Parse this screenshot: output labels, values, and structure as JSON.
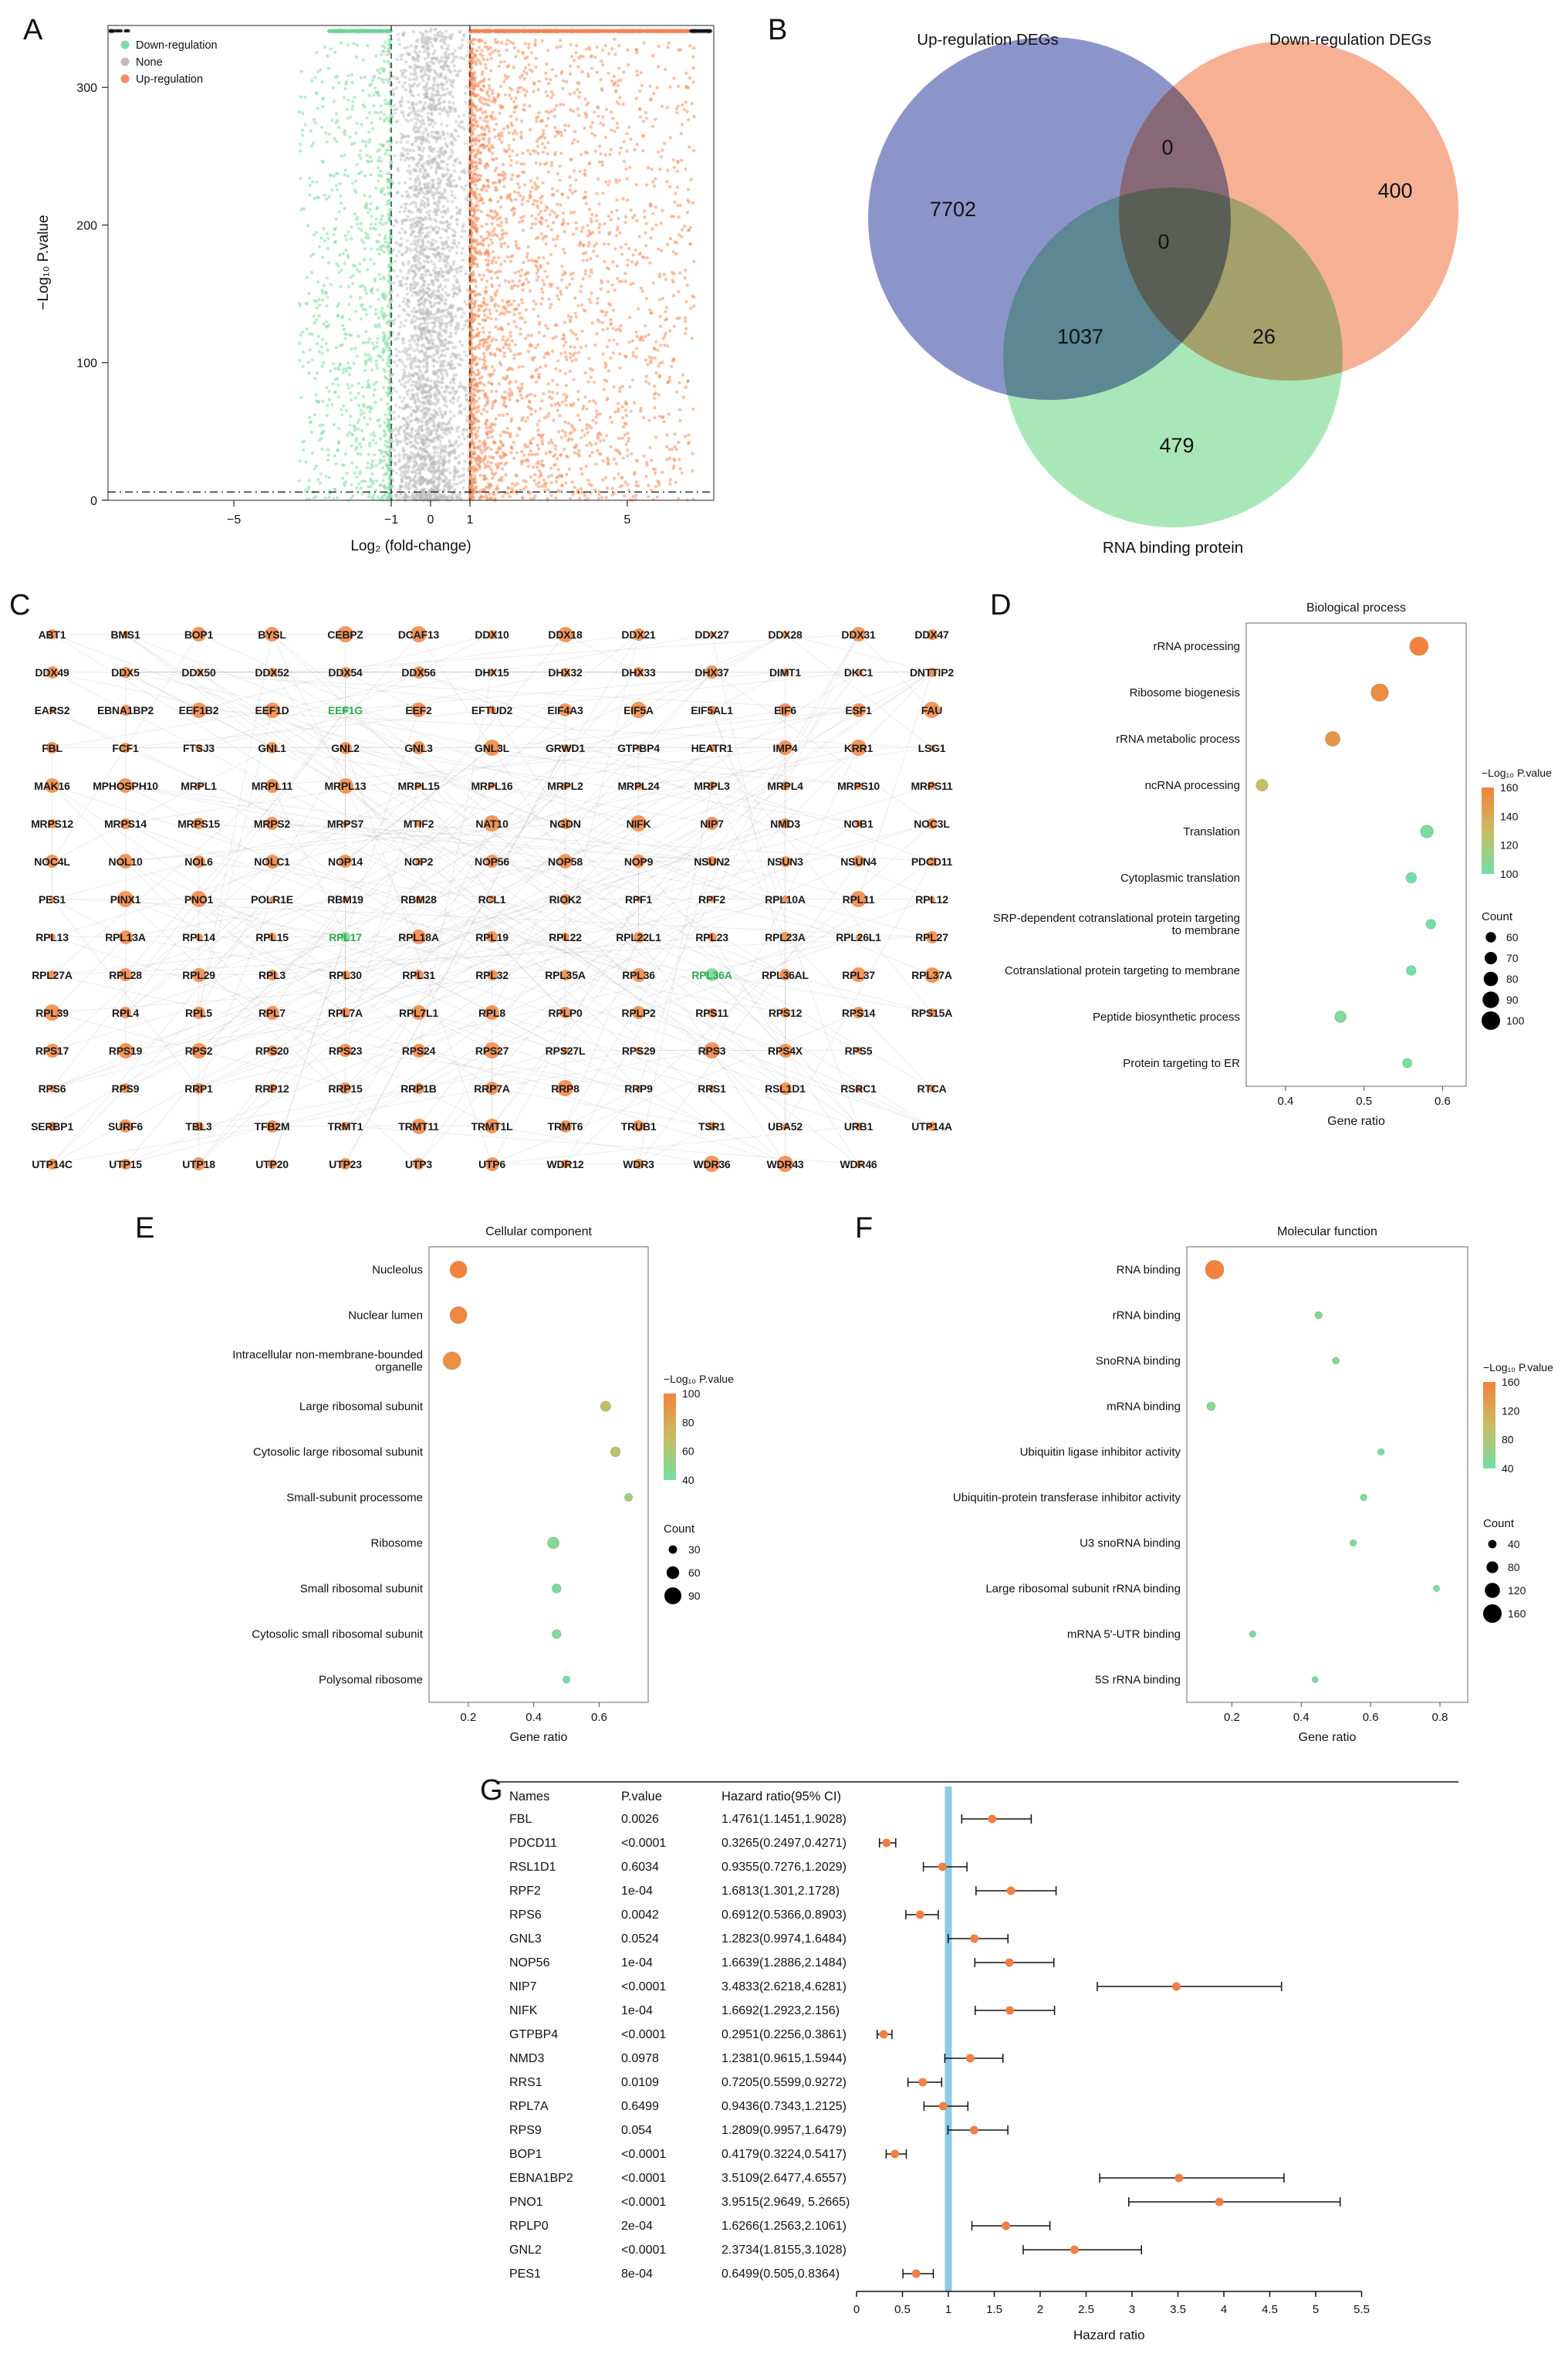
{
  "panels": {
    "a": "A",
    "b": "B",
    "c": "C",
    "d": "D",
    "e": "E",
    "f": "F",
    "g": "G"
  },
  "chart_data": [
    {
      "id": "A",
      "type": "scatter",
      "kind": "volcano",
      "xlabel": "Log₂ (fold-change)",
      "ylabel": "−Log₁₀ P.value",
      "xlim": [
        -8.2,
        7.2
      ],
      "ylim": [
        0,
        345
      ],
      "x_tick_labels": [
        "−5",
        "−1",
        "0",
        "1",
        "5"
      ],
      "x_tick_values": [
        -5,
        -1,
        0,
        1,
        5
      ],
      "y_tick_labels": [
        "0",
        "100",
        "200",
        "300"
      ],
      "y_tick_values": [
        0,
        100,
        200,
        300
      ],
      "threshold_x": [
        -1,
        1
      ],
      "threshold_y": 6,
      "legend": [
        {
          "label": "Down-regulation",
          "color": "#7EDCA0"
        },
        {
          "label": "None",
          "color": "#BDBDBD"
        },
        {
          "label": "Up-regulation",
          "color": "#F28C5A"
        }
      ]
    },
    {
      "id": "B",
      "type": "venn",
      "sets": [
        {
          "name": "Up-regulation DEGs",
          "unique_count": "7702",
          "color": "#7883C1"
        },
        {
          "name": "Down-regulation DEGs",
          "unique_count": "400",
          "color": "#F5A383"
        },
        {
          "name": "RNA binding protein",
          "unique_count": "479",
          "color": "#9BE3AC"
        }
      ],
      "overlaps": [
        {
          "sets": [
            "Up-regulation DEGs",
            "Down-regulation DEGs"
          ],
          "count": "0"
        },
        {
          "sets": [
            "Up-regulation DEGs",
            "Down-regulation DEGs",
            "RNA binding protein"
          ],
          "count": "0"
        },
        {
          "sets": [
            "Up-regulation DEGs",
            "RNA binding protein"
          ],
          "count": "1037"
        },
        {
          "sets": [
            "Down-regulation DEGs",
            "RNA binding protein"
          ],
          "count": "26"
        }
      ]
    },
    {
      "id": "C",
      "type": "network",
      "node_color": "#F28B4B",
      "green_node_color": "#7FD89A",
      "green_label_color": "#2FA84F",
      "green_genes": [
        "EEF1G",
        "RPL17",
        "RPL36A"
      ],
      "gene_rows": [
        [
          "ABT1",
          "BMS1",
          "BOP1",
          "BYSL",
          "CEBPZ",
          "DCAF13",
          "DDX10",
          "DDX18",
          "DDX21",
          "DDX27",
          "DDX28",
          "DDX31",
          "DDX47"
        ],
        [
          "DDX49",
          "DDX5",
          "DDX50",
          "DDX52",
          "DDX54",
          "DDX56",
          "DHX15",
          "DHX32",
          "DHX33",
          "DHX37",
          "DIMT1",
          "DKC1",
          "DNTTIP2"
        ],
        [
          "EARS2",
          "EBNA1BP2",
          "EEF1B2",
          "EEF1D",
          "EEF1G",
          "EEF2",
          "EFTUD2",
          "EIF4A3",
          "EIF5A",
          "EIF5AL1",
          "EIF6",
          "ESF1",
          "FAU"
        ],
        [
          "FBL",
          "FCF1",
          "FTSJ3",
          "GNL1",
          "GNL2",
          "GNL3",
          "GNL3L",
          "GRWD1",
          "GTPBP4",
          "HEATR1",
          "IMP4",
          "KRR1",
          "LSG1"
        ],
        [
          "MAK16",
          "MPHOSPH10",
          "MRPL1",
          "MRPL11",
          "MRPL13",
          "MRPL15",
          "MRPL16",
          "MRPL2",
          "MRPL24",
          "MRPL3",
          "MRPL4",
          "MRPS10",
          "MRPS11"
        ],
        [
          "MRPS12",
          "MRPS14",
          "MRPS15",
          "MRPS2",
          "MRPS7",
          "MTIF2",
          "NAT10",
          "NGDN",
          "NIFK",
          "NIP7",
          "NMD3",
          "NOB1",
          "NOC3L"
        ],
        [
          "NOC4L",
          "NOL10",
          "NOL6",
          "NOLC1",
          "NOP14",
          "NOP2",
          "NOP56",
          "NOP58",
          "NOP9",
          "NSUN2",
          "NSUN3",
          "NSUN4",
          "PDCD11"
        ],
        [
          "PES1",
          "PINX1",
          "PNO1",
          "POLR1E",
          "RBM19",
          "RBM28",
          "RCL1",
          "RIOK2",
          "RPF1",
          "RPF2",
          "RPL10A",
          "RPL11",
          "RPL12"
        ],
        [
          "RPL13",
          "RPL13A",
          "RPL14",
          "RPL15",
          "RPL17",
          "RPL18A",
          "RPL19",
          "RPL22",
          "RPL22L1",
          "RPL23",
          "RPL23A",
          "RPL26L1",
          "RPL27"
        ],
        [
          "RPL27A",
          "RPL28",
          "RPL29",
          "RPL3",
          "RPL30",
          "RPL31",
          "RPL32",
          "RPL35A",
          "RPL36",
          "RPL36A",
          "RPL36AL",
          "RPL37",
          "RPL37A"
        ],
        [
          "RPL39",
          "RPL4",
          "RPL5",
          "RPL7",
          "RPL7A",
          "RPL7L1",
          "RPL8",
          "RPLP0",
          "RPLP2",
          "RPS11",
          "RPS12",
          "RPS14",
          "RPS15A"
        ],
        [
          "RPS17",
          "RPS19",
          "RPS2",
          "RPS20",
          "RPS23",
          "RPS24",
          "RPS27",
          "RPS27L",
          "RPS29",
          "RPS3",
          "RPS4X",
          "RPS5"
        ],
        [
          "RPS6",
          "RPS9",
          "RRP1",
          "RRP12",
          "RRP15",
          "RRP1B",
          "RRP7A",
          "RRP8",
          "RRP9",
          "RRS1",
          "RSL1D1",
          "RSRC1",
          "RTCA"
        ],
        [
          "SERBP1",
          "SURF6",
          "TBL3",
          "TFB2M",
          "TRMT1",
          "TRMT11",
          "TRMT1L",
          "TRMT6",
          "TRUB1",
          "TSR1",
          "UBA52",
          "URB1",
          "UTP14A"
        ],
        [
          "UTP14C",
          "UTP15",
          "UTP18",
          "UTP20",
          "UTP23",
          "UTP3",
          "UTP6",
          "WDR12",
          "WDR3",
          "WDR36",
          "WDR43",
          "WDR46"
        ]
      ]
    },
    {
      "id": "D",
      "type": "dotplot",
      "title": "Biological process",
      "xlabel": "Gene ratio",
      "x_domain": [
        0.35,
        0.63
      ],
      "x_ticks": [
        "0.4",
        "0.5",
        "0.6"
      ],
      "color_domain": [
        100,
        160
      ],
      "size_domain": [
        55,
        100
      ],
      "legend": {
        "grad_title": "−Log₁₀ P.value",
        "grad_ticks": [
          160,
          140,
          120,
          100
        ],
        "count_title": "Count",
        "count_ticks": [
          60,
          70,
          80,
          90,
          100
        ]
      },
      "rows": [
        {
          "label_lines": [
            "rRNA processing"
          ],
          "ratio": 0.57,
          "plog": 160,
          "count": 100
        },
        {
          "label_lines": [
            "Ribosome biogenesis"
          ],
          "ratio": 0.52,
          "plog": 155,
          "count": 95
        },
        {
          "label_lines": [
            "rRNA metabolic process"
          ],
          "ratio": 0.46,
          "plog": 150,
          "count": 82
        },
        {
          "label_lines": [
            "ncRNA processing"
          ],
          "ratio": 0.37,
          "plog": 130,
          "count": 68
        },
        {
          "label_lines": [
            "Translation"
          ],
          "ratio": 0.58,
          "plog": 102,
          "count": 72
        },
        {
          "label_lines": [
            "Cytoplasmic translation"
          ],
          "ratio": 0.56,
          "plog": 100,
          "count": 62
        },
        {
          "label_lines": [
            "SRP-dependent cotranslational protein targeting",
            "to membrane"
          ],
          "ratio": 0.585,
          "plog": 98,
          "count": 57
        },
        {
          "label_lines": [
            "Cotranslational protein targeting to membrane"
          ],
          "ratio": 0.56,
          "plog": 98,
          "count": 57
        },
        {
          "label_lines": [
            "Peptide biosynthetic process"
          ],
          "ratio": 0.47,
          "plog": 103,
          "count": 66
        },
        {
          "label_lines": [
            "Protein targeting to ER"
          ],
          "ratio": 0.555,
          "plog": 98,
          "count": 56
        }
      ]
    },
    {
      "id": "E",
      "type": "dotplot",
      "title": "Cellular component",
      "xlabel": "Gene ratio",
      "x_domain": [
        0.08,
        0.75
      ],
      "x_ticks": [
        "0.2",
        "0.4",
        "0.6"
      ],
      "color_domain": [
        40,
        100
      ],
      "size_domain": [
        20,
        95
      ],
      "legend": {
        "grad_title": "−Log₁₀ P.value",
        "grad_ticks": [
          100,
          80,
          60,
          40
        ],
        "count_title": "Count",
        "count_ticks": [
          30,
          60,
          90
        ]
      },
      "rows": [
        {
          "label_lines": [
            "Nucleolus"
          ],
          "ratio": 0.17,
          "plog": 100,
          "count": 90
        },
        {
          "label_lines": [
            "Nuclear lumen"
          ],
          "ratio": 0.17,
          "plog": 97,
          "count": 90
        },
        {
          "label_lines": [
            "Intracellular non-membrane-bounded",
            "organelle"
          ],
          "ratio": 0.15,
          "plog": 93,
          "count": 95
        },
        {
          "label_lines": [
            "Large ribosomal subunit"
          ],
          "ratio": 0.62,
          "plog": 68,
          "count": 42
        },
        {
          "label_lines": [
            "Cytosolic large ribosomal subunit"
          ],
          "ratio": 0.65,
          "plog": 66,
          "count": 40
        },
        {
          "label_lines": [
            "Small-subunit processome"
          ],
          "ratio": 0.69,
          "plog": 55,
          "count": 28
        },
        {
          "label_lines": [
            "Ribosome"
          ],
          "ratio": 0.46,
          "plog": 47,
          "count": 52
        },
        {
          "label_lines": [
            "Small ribosomal subunit"
          ],
          "ratio": 0.47,
          "plog": 45,
          "count": 35
        },
        {
          "label_lines": [
            "Cytosolic small ribosomal subunit"
          ],
          "ratio": 0.47,
          "plog": 44,
          "count": 34
        },
        {
          "label_lines": [
            "Polysomal ribosome"
          ],
          "ratio": 0.5,
          "plog": 40,
          "count": 22
        }
      ]
    },
    {
      "id": "F",
      "type": "dotplot",
      "title": "Molecular function",
      "xlabel": "Gene ratio",
      "x_domain": [
        0.07,
        0.88
      ],
      "x_ticks": [
        "0.2",
        "0.4",
        "0.6",
        "0.8"
      ],
      "color_domain": [
        40,
        160
      ],
      "size_domain": [
        15,
        160
      ],
      "legend": {
        "grad_title": "−Log₁₀ P.value",
        "grad_ticks": [
          160,
          120,
          80,
          40
        ],
        "count_title": "Count",
        "count_ticks": [
          40,
          80,
          120,
          160
        ]
      },
      "rows": [
        {
          "label_lines": [
            "RNA binding"
          ],
          "ratio": 0.15,
          "plog": 160,
          "count": 160
        },
        {
          "label_lines": [
            "rRNA binding"
          ],
          "ratio": 0.45,
          "plog": 55,
          "count": 30
        },
        {
          "label_lines": [
            "SnoRNA binding"
          ],
          "ratio": 0.5,
          "plog": 50,
          "count": 24
        },
        {
          "label_lines": [
            "mRNA binding"
          ],
          "ratio": 0.14,
          "plog": 52,
          "count": 42
        },
        {
          "label_lines": [
            "Ubiquitin ligase inhibitor activity"
          ],
          "ratio": 0.63,
          "plog": 46,
          "count": 20
        },
        {
          "label_lines": [
            "Ubiquitin-protein transferase inhibitor activity"
          ],
          "ratio": 0.58,
          "plog": 46,
          "count": 20
        },
        {
          "label_lines": [
            "U3 snoRNA binding"
          ],
          "ratio": 0.55,
          "plog": 48,
          "count": 20
        },
        {
          "label_lines": [
            "Large ribosomal subunit rRNA binding"
          ],
          "ratio": 0.79,
          "plog": 44,
          "count": 16
        },
        {
          "label_lines": [
            "mRNA 5'-UTR binding"
          ],
          "ratio": 0.26,
          "plog": 48,
          "count": 18
        },
        {
          "label_lines": [
            "5S rRNA binding"
          ],
          "ratio": 0.44,
          "plog": 44,
          "count": 15
        }
      ]
    },
    {
      "id": "G",
      "type": "forest",
      "xlabel": "Hazard ratio",
      "columns": [
        "Names",
        "P.value",
        "Hazard ratio(95% CI)"
      ],
      "xlim": [
        0,
        5.5
      ],
      "x_ticks": [
        "0",
        "0.5",
        "1",
        "1.5",
        "2",
        "2.5",
        "3",
        "3.5",
        "4",
        "4.5",
        "5",
        "5.5"
      ],
      "ref_line": 1,
      "ref_line_color": "#8CCBE4",
      "point_color": "#F08045",
      "rows": [
        {
          "name": "FBL",
          "p": "0.0026",
          "ci": "1.4761(1.1451,1.9028)",
          "hr": 1.4761,
          "lo": 1.1451,
          "hi": 1.9028
        },
        {
          "name": "PDCD11",
          "p": "<0.0001",
          "ci": "0.3265(0.2497,0.4271)",
          "hr": 0.3265,
          "lo": 0.2497,
          "hi": 0.4271
        },
        {
          "name": "RSL1D1",
          "p": "0.6034",
          "ci": "0.9355(0.7276,1.2029)",
          "hr": 0.9355,
          "lo": 0.7276,
          "hi": 1.2029
        },
        {
          "name": "RPF2",
          "p": "1e-04",
          "ci": "1.6813(1.301,2.1728)",
          "hr": 1.6813,
          "lo": 1.301,
          "hi": 2.1728
        },
        {
          "name": "RPS6",
          "p": "0.0042",
          "ci": "0.6912(0.5366,0.8903)",
          "hr": 0.6912,
          "lo": 0.5366,
          "hi": 0.8903
        },
        {
          "name": "GNL3",
          "p": "0.0524",
          "ci": "1.2823(0.9974,1.6484)",
          "hr": 1.2823,
          "lo": 0.9974,
          "hi": 1.6484
        },
        {
          "name": "NOP56",
          "p": "1e-04",
          "ci": "1.6639(1.2886,2.1484)",
          "hr": 1.6639,
          "lo": 1.2886,
          "hi": 2.1484
        },
        {
          "name": "NIP7",
          "p": "<0.0001",
          "ci": "3.4833(2.6218,4.6281)",
          "hr": 3.4833,
          "lo": 2.6218,
          "hi": 4.6281
        },
        {
          "name": "NIFK",
          "p": "1e-04",
          "ci": "1.6692(1.2923,2.156)",
          "hr": 1.6692,
          "lo": 1.2923,
          "hi": 2.156
        },
        {
          "name": "GTPBP4",
          "p": "<0.0001",
          "ci": "0.2951(0.2256,0.3861)",
          "hr": 0.2951,
          "lo": 0.2256,
          "hi": 0.3861
        },
        {
          "name": "NMD3",
          "p": "0.0978",
          "ci": "1.2381(0.9615,1.5944)",
          "hr": 1.2381,
          "lo": 0.9615,
          "hi": 1.5944
        },
        {
          "name": "RRS1",
          "p": "0.0109",
          "ci": "0.7205(0.5599,0.9272)",
          "hr": 0.7205,
          "lo": 0.5599,
          "hi": 0.9272
        },
        {
          "name": "RPL7A",
          "p": "0.6499",
          "ci": "0.9436(0.7343,1.2125)",
          "hr": 0.9436,
          "lo": 0.7343,
          "hi": 1.2125
        },
        {
          "name": "RPS9",
          "p": "0.054",
          "ci": "1.2809(0.9957,1.6479)",
          "hr": 1.2809,
          "lo": 0.9957,
          "hi": 1.6479
        },
        {
          "name": "BOP1",
          "p": "<0.0001",
          "ci": "0.4179(0.3224,0.5417)",
          "hr": 0.4179,
          "lo": 0.3224,
          "hi": 0.5417
        },
        {
          "name": "EBNA1BP2",
          "p": "<0.0001",
          "ci": "3.5109(2.6477,4.6557)",
          "hr": 3.5109,
          "lo": 2.6477,
          "hi": 4.6557
        },
        {
          "name": "PNO1",
          "p": "<0.0001",
          "ci": "3.9515(2.9649, 5.2665)",
          "hr": 3.9515,
          "lo": 2.9649,
          "hi": 5.2665
        },
        {
          "name": "RPLP0",
          "p": "2e-04",
          "ci": "1.6266(1.2563,2.1061)",
          "hr": 1.6266,
          "lo": 1.2563,
          "hi": 2.1061
        },
        {
          "name": "GNL2",
          "p": "<0.0001",
          "ci": "2.3734(1.8155,3.1028)",
          "hr": 2.3734,
          "lo": 1.8155,
          "hi": 3.1028
        },
        {
          "name": "PES1",
          "p": "8e-04",
          "ci": "0.6499(0.505,0.8364)",
          "hr": 0.6499,
          "lo": 0.505,
          "hi": 0.8364
        }
      ]
    }
  ]
}
